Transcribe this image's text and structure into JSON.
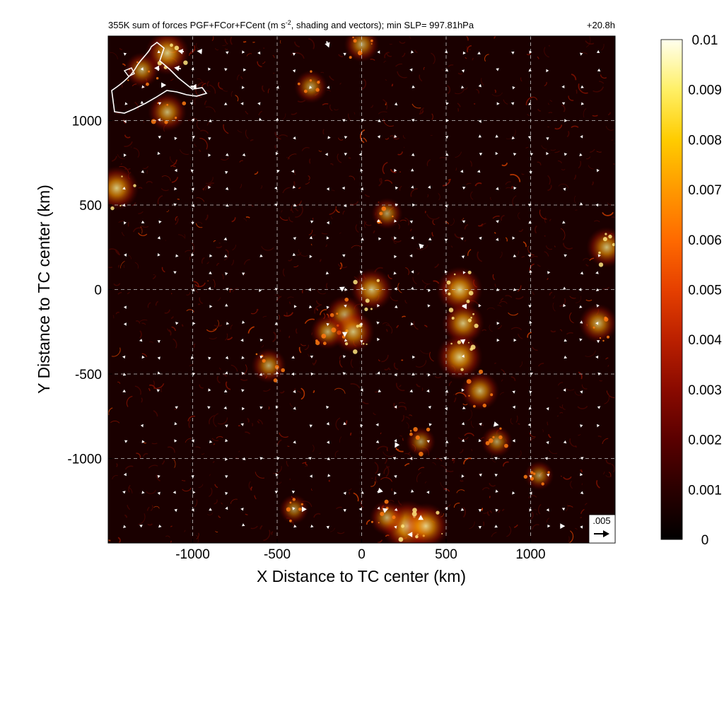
{
  "chart_data": {
    "type": "heatmap",
    "title": "355K sum of forces PGF+FCor+FCent (m s",
    "title_superscript": "-2",
    "title_suffix": ", shading and vectors); min SLP= 997.81hPa",
    "time_label": "+20.8h",
    "xlabel": "X Distance to TC center (km)",
    "ylabel": "Y Distance to TC center (km)",
    "xlim": [
      -1500,
      1500
    ],
    "ylim": [
      -1500,
      1500
    ],
    "xticks": [
      -1000,
      -500,
      0,
      500,
      1000
    ],
    "yticks": [
      -1000,
      -500,
      0,
      500,
      1000
    ],
    "grid": true,
    "colorbar": {
      "min": 0,
      "max": 0.01,
      "ticks": [
        "0",
        "0.001",
        "0.002",
        "0.003",
        "0.004",
        "0.005",
        "0.006",
        "0.007",
        "0.008",
        "0.009",
        "0.01"
      ],
      "colors": [
        "#000000",
        "#2a0000",
        "#5a0000",
        "#8a0a00",
        "#bb2000",
        "#e64000",
        "#ff6a00",
        "#ff9900",
        "#ffcc00",
        "#fff066",
        "#ffffee"
      ]
    },
    "reference_vector": {
      "label": ".005",
      "value": 0.005
    },
    "hotspots": [
      {
        "x": -1150,
        "y": 1400,
        "v": 0.0075
      },
      {
        "x": -1300,
        "y": 1300,
        "v": 0.005
      },
      {
        "x": -1150,
        "y": 1050,
        "v": 0.006
      },
      {
        "x": -1450,
        "y": 600,
        "v": 0.0075
      },
      {
        "x": -300,
        "y": 1200,
        "v": 0.0045
      },
      {
        "x": 0,
        "y": 1450,
        "v": 0.005
      },
      {
        "x": 150,
        "y": 450,
        "v": 0.004
      },
      {
        "x": 60,
        "y": 0,
        "v": 0.007
      },
      {
        "x": -100,
        "y": -150,
        "v": 0.006
      },
      {
        "x": -50,
        "y": -250,
        "v": 0.007
      },
      {
        "x": -200,
        "y": -250,
        "v": 0.005
      },
      {
        "x": -550,
        "y": -450,
        "v": 0.005
      },
      {
        "x": 580,
        "y": 0,
        "v": 0.008
      },
      {
        "x": 600,
        "y": -200,
        "v": 0.007
      },
      {
        "x": 580,
        "y": -400,
        "v": 0.008
      },
      {
        "x": 700,
        "y": -600,
        "v": 0.006
      },
      {
        "x": 800,
        "y": -900,
        "v": 0.004
      },
      {
        "x": 1400,
        "y": -200,
        "v": 0.006
      },
      {
        "x": 1450,
        "y": 250,
        "v": 0.0065
      },
      {
        "x": 270,
        "y": -1400,
        "v": 0.0095
      },
      {
        "x": 380,
        "y": -1400,
        "v": 0.008
      },
      {
        "x": 150,
        "y": -1350,
        "v": 0.005
      },
      {
        "x": 350,
        "y": -900,
        "v": 0.0035
      },
      {
        "x": -400,
        "y": -1300,
        "v": 0.0035
      },
      {
        "x": 1050,
        "y": -1100,
        "v": 0.0035
      }
    ],
    "vectors": [
      {
        "x": -1070,
        "y": 1410,
        "u": -0.0026,
        "v": 0.0004
      },
      {
        "x": -960,
        "y": 1410,
        "u": -0.0022,
        "v": 0.0002
      },
      {
        "x": -1090,
        "y": 1310,
        "u": -0.003,
        "v": 0.0005
      },
      {
        "x": -1220,
        "y": 1310,
        "u": -0.0012,
        "v": 0.0
      },
      {
        "x": -1170,
        "y": 1210,
        "u": 0.002,
        "v": 0.0
      },
      {
        "x": -1000,
        "y": 1200,
        "u": -0.0012,
        "v": 0.0
      },
      {
        "x": -200,
        "y": 1450,
        "u": 0.001,
        "v": -0.0028
      },
      {
        "x": 350,
        "y": 260,
        "u": -0.0018,
        "v": 0.0018
      },
      {
        "x": -110,
        "y": 10,
        "u": 0.0016,
        "v": 0.001
      },
      {
        "x": -100,
        "y": -270,
        "u": 0.0,
        "v": -0.0016
      },
      {
        "x": 600,
        "y": -100,
        "u": -0.0012,
        "v": 0.0
      },
      {
        "x": 600,
        "y": -310,
        "u": 0.0002,
        "v": -0.0022
      },
      {
        "x": 800,
        "y": -800,
        "u": 0.0018,
        "v": -0.0004
      },
      {
        "x": 200,
        "y": -930,
        "u": -0.0006,
        "v": -0.001
      },
      {
        "x": 100,
        "y": -1200,
        "u": -0.0008,
        "v": -0.0008
      },
      {
        "x": 150,
        "y": -1300,
        "u": 0.001,
        "v": 0.0004
      },
      {
        "x": 280,
        "y": -1450,
        "u": -0.0014,
        "v": 0.0
      },
      {
        "x": 350,
        "y": -1340,
        "u": 0.0,
        "v": 0.001
      },
      {
        "x": -330,
        "y": -1300,
        "u": 0.0008,
        "v": 0.0
      },
      {
        "x": 1200,
        "y": -1400,
        "u": 0.0006,
        "v": 0.0
      }
    ]
  }
}
